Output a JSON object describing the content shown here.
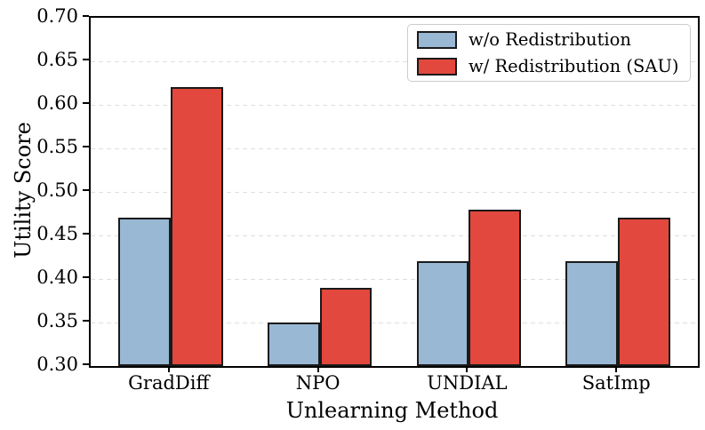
{
  "chart_data": {
    "type": "bar",
    "title": "",
    "xlabel": "Unlearning Method",
    "ylabel": "Utility Score",
    "categories": [
      "GradDiff",
      "NPO",
      "UNDIAL",
      "SatImp"
    ],
    "series": [
      {
        "name": "w/o Redistribution",
        "color": "#98B8D4",
        "values": [
          0.47,
          0.35,
          0.42,
          0.42
        ]
      },
      {
        "name": "w/ Redistribution (SAU)",
        "color": "#E2483D",
        "values": [
          0.62,
          0.39,
          0.48,
          0.47
        ]
      }
    ],
    "ylim": [
      0.3,
      0.7
    ],
    "ytick_labels": [
      "0.30",
      "0.35",
      "0.40",
      "0.45",
      "0.50",
      "0.55",
      "0.60",
      "0.65",
      "0.70"
    ],
    "grid": "horizontal-dashed",
    "grid_color": "#dedede",
    "legend_position": "upper-right",
    "bar_edge_color": "#1a1a1a",
    "axis_color": "#000000"
  }
}
